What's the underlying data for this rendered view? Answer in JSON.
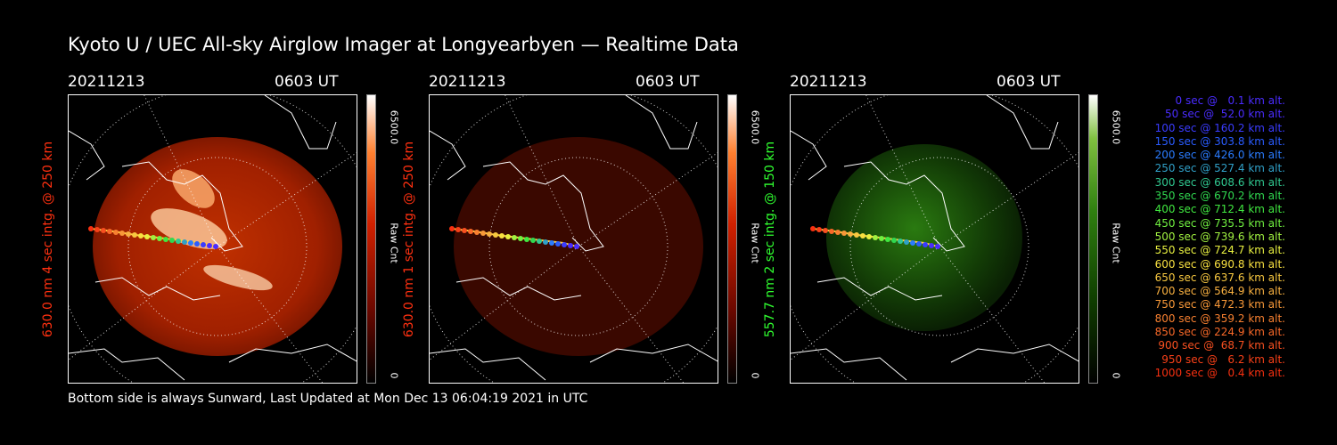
{
  "title": "Kyoto U / UEC All-sky Airglow Imager at Longyearbyen — Realtime Data",
  "footer": "Bottom side is always Sunward, Last Updated at Mon Dec 13 06:04:19 2021 in UTC",
  "panels": [
    {
      "date": "20211213",
      "time": "0603 UT",
      "ylabel": "630.0 nm 4 sec intg. @ 250 km",
      "cb_max": "6500.0",
      "cb_min": "0",
      "cb_unit": "Raw Cnt",
      "color": "#ff3010"
    },
    {
      "date": "20211213",
      "time": "0603 UT",
      "ylabel": "630.0 nm 1 sec intg. @ 250 km",
      "cb_max": "6500.0",
      "cb_min": "0",
      "cb_unit": "Raw Cnt",
      "color": "#ff3010"
    },
    {
      "date": "20211213",
      "time": "0603 UT",
      "ylabel": "557.7 nm 2 sec intg. @ 150 km",
      "cb_max": "6500.0",
      "cb_min": "0",
      "cb_unit": "Raw Cnt",
      "color": "#30ff30"
    }
  ],
  "legend": [
    {
      "text": "0 sec @   0.1 km alt.",
      "color": "#4a2cff"
    },
    {
      "text": "50 sec @  52.0 km alt.",
      "color": "#4a2cff"
    },
    {
      "text": "100 sec @ 160.2 km alt.",
      "color": "#3a3cff"
    },
    {
      "text": "150 sec @ 303.8 km alt.",
      "color": "#2a5cff"
    },
    {
      "text": "200 sec @ 426.0 km alt.",
      "color": "#2a7cff"
    },
    {
      "text": "250 sec @ 527.4 km alt.",
      "color": "#30a0c8"
    },
    {
      "text": "300 sec @ 608.6 km alt.",
      "color": "#30c890"
    },
    {
      "text": "350 sec @ 670.2 km alt.",
      "color": "#30d850"
    },
    {
      "text": "400 sec @ 712.4 km alt.",
      "color": "#40e840"
    },
    {
      "text": "450 sec @ 735.5 km alt.",
      "color": "#70f040"
    },
    {
      "text": "500 sec @ 739.6 km alt.",
      "color": "#a0f040"
    },
    {
      "text": "550 sec @ 724.7 km alt.",
      "color": "#e8f040"
    },
    {
      "text": "600 sec @ 690.8 km alt.",
      "color": "#f8e040"
    },
    {
      "text": "650 sec @ 637.6 km alt.",
      "color": "#f8c840"
    },
    {
      "text": "700 sec @ 564.9 km alt.",
      "color": "#f8b040"
    },
    {
      "text": "750 sec @ 472.3 km alt.",
      "color": "#f89838"
    },
    {
      "text": "800 sec @ 359.2 km alt.",
      "color": "#f88030"
    },
    {
      "text": "850 sec @ 224.9 km alt.",
      "color": "#f86828"
    },
    {
      "text": "900 sec @  68.7 km alt.",
      "color": "#f85020"
    },
    {
      "text": "950 sec @   6.2 km alt.",
      "color": "#f84018"
    },
    {
      "text": "1000 sec @   0.4 km alt.",
      "color": "#f83010"
    }
  ]
}
